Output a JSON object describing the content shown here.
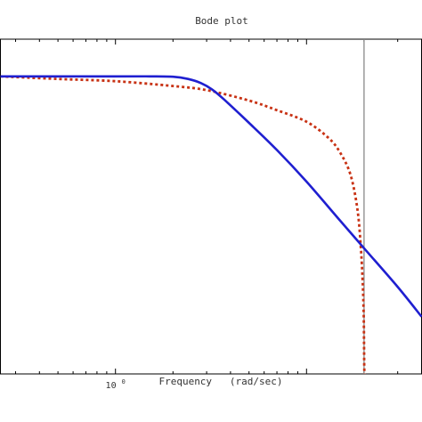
{
  "chart_data": {
    "type": "line",
    "title": "Bode plot",
    "xlabel": "Frequency   (rad/sec)",
    "ylabel": "",
    "x_scale": "log",
    "xlim": [
      0.25,
      40
    ],
    "ylim": [
      -80,
      10
    ],
    "grid": false,
    "x_ticks": [
      {
        "value": 1,
        "label_base": "10",
        "label_exp": "0"
      }
    ],
    "vline": {
      "x": 20,
      "color": "#888888"
    },
    "series": [
      {
        "style": "solid",
        "color": "#1f1fd0",
        "x": [
          0.25,
          0.5,
          1.0,
          1.5,
          2.0,
          2.4,
          2.8,
          3.2,
          3.7,
          5.0,
          7.0,
          10.0,
          15.0,
          20.0,
          30.0,
          40.0
        ],
        "y": [
          0.0,
          0.0,
          0.0,
          0.0,
          -0.1,
          -0.7,
          -1.8,
          -3.5,
          -6.2,
          -12.5,
          -19.8,
          -28.3,
          -38.8,
          -46.2,
          -56.6,
          -64.6
        ]
      },
      {
        "style": "dotted",
        "color": "#c83214",
        "x": [
          0.25,
          0.5,
          1.0,
          2.0,
          3.0,
          5.0,
          7.0,
          10.0,
          13.0,
          15.0,
          17.0,
          18.5,
          19.3,
          19.7,
          19.85,
          19.95,
          20.0,
          20.05,
          20.1
        ],
        "y": [
          0.0,
          -0.7,
          -1.3,
          -2.6,
          -3.7,
          -6.5,
          -9.1,
          -12.2,
          -16.5,
          -20.5,
          -26.5,
          -36.0,
          -47.0,
          -56.0,
          -61.0,
          -66.0,
          -72.0,
          -78.0,
          -80.0
        ]
      }
    ]
  }
}
